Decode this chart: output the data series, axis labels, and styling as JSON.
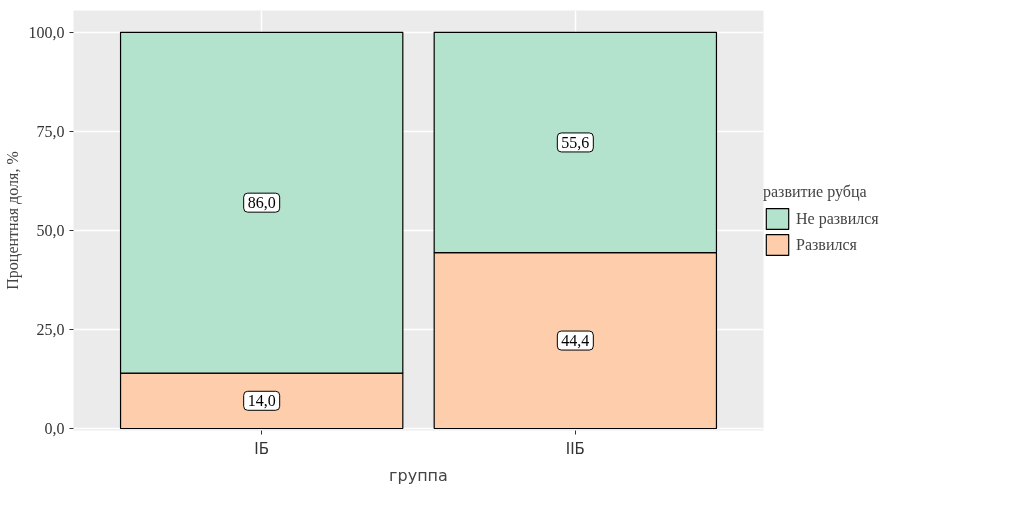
{
  "chart_data": {
    "type": "bar",
    "stacked": true,
    "xlabel": "группа",
    "ylabel": "Процентная доля, %",
    "legend_title": "развитие рубца",
    "categories": [
      "IБ",
      "IIБ"
    ],
    "series": [
      {
        "name": "Развился",
        "color": "#fdcdac",
        "values": [
          14.0,
          44.4
        ],
        "value_labels": [
          "14,0",
          "44,4"
        ]
      },
      {
        "name": "Не развился",
        "color": "#b3e2cd",
        "values": [
          86.0,
          55.6
        ],
        "value_labels": [
          "86,0",
          "55,6"
        ]
      }
    ],
    "ylim": [
      -0.5,
      105.5
    ],
    "yticks": [
      {
        "value": 0,
        "label": "0,0"
      },
      {
        "value": 25,
        "label": "25,0"
      },
      {
        "value": 50,
        "label": "50,0"
      },
      {
        "value": 75,
        "label": "75,0"
      },
      {
        "value": 100,
        "label": "100,0"
      }
    ],
    "grid": true,
    "legend": "right"
  }
}
